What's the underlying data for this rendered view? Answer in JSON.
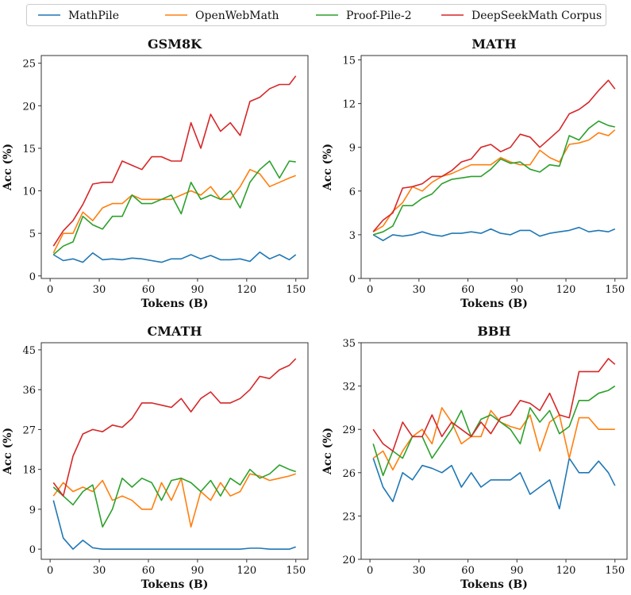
{
  "legend": {
    "placement": "top-center",
    "entries": [
      {
        "name": "MathPile",
        "color": "#1f77b4"
      },
      {
        "name": "OpenWebMath",
        "color": "#ff7f0e"
      },
      {
        "name": "Proof-Pile-2",
        "color": "#2ca02c"
      },
      {
        "name": "DeepSeekMath Corpus",
        "color": "#d62728"
      }
    ]
  },
  "chart_data": [
    {
      "type": "line",
      "title": "GSM8K",
      "xlabel": "Tokens (B)",
      "ylabel": "Acc (%)",
      "xlim": [
        -5.4,
        157.4
      ],
      "ylim": [
        -0.3,
        25.9
      ],
      "xticks": [
        0,
        30,
        60,
        90,
        120,
        150
      ],
      "yticks": [
        0,
        5,
        10,
        15,
        20,
        25
      ],
      "grid": false,
      "x": [
        2,
        8,
        14,
        20,
        26,
        32,
        38,
        44,
        50,
        56,
        62,
        68,
        74,
        80,
        86,
        92,
        98,
        104,
        110,
        116,
        122,
        128,
        134,
        140,
        146,
        150
      ],
      "series": [
        {
          "name": "MathPile",
          "values": [
            2.5,
            1.8,
            2.0,
            1.6,
            2.7,
            1.9,
            2.0,
            1.9,
            2.1,
            2.0,
            1.8,
            1.6,
            2.0,
            2.0,
            2.5,
            2.0,
            2.4,
            1.9,
            1.9,
            2.0,
            1.7,
            2.8,
            2.0,
            2.5,
            1.9,
            2.5
          ]
        },
        {
          "name": "OpenWebMath",
          "values": [
            2.7,
            5.0,
            5.0,
            7.5,
            6.5,
            8.0,
            8.5,
            8.5,
            9.5,
            9.0,
            9.0,
            9.0,
            9.0,
            9.5,
            10.0,
            9.5,
            10.5,
            9.0,
            9.0,
            10.5,
            12.5,
            12.0,
            10.5,
            11.0,
            11.5,
            11.8
          ]
        },
        {
          "name": "Proof-Pile-2",
          "values": [
            2.5,
            3.5,
            4.0,
            7.0,
            6.0,
            5.5,
            7.0,
            7.0,
            9.5,
            8.5,
            8.5,
            9.0,
            9.5,
            7.3,
            11.0,
            9.0,
            9.5,
            9.0,
            10.0,
            8.0,
            11.0,
            12.5,
            13.5,
            11.5,
            13.5,
            13.4
          ]
        },
        {
          "name": "DeepSeekMath Corpus",
          "values": [
            3.5,
            5.3,
            6.5,
            8.4,
            10.8,
            11.0,
            11.0,
            13.5,
            13.0,
            12.5,
            14.0,
            14.0,
            13.5,
            13.5,
            18.0,
            15.0,
            19.0,
            17.0,
            18.0,
            16.5,
            20.5,
            21.0,
            22.0,
            22.5,
            22.5,
            23.5
          ]
        }
      ]
    },
    {
      "type": "line",
      "title": "MATH",
      "xlabel": "Tokens (B)",
      "ylabel": "Acc (%)",
      "xlim": [
        -5.4,
        157.4
      ],
      "ylim": [
        0,
        15.3
      ],
      "xticks": [
        0,
        30,
        60,
        90,
        120,
        150
      ],
      "yticks": [
        0,
        3,
        6,
        9,
        12,
        15
      ],
      "grid": false,
      "x": [
        2,
        8,
        14,
        20,
        26,
        32,
        38,
        44,
        50,
        56,
        62,
        68,
        74,
        80,
        86,
        92,
        98,
        104,
        110,
        116,
        122,
        128,
        134,
        140,
        146,
        150
      ],
      "series": [
        {
          "name": "MathPile",
          "values": [
            3.0,
            2.6,
            3.0,
            2.9,
            3.0,
            3.2,
            3.0,
            2.9,
            3.1,
            3.1,
            3.2,
            3.1,
            3.4,
            3.1,
            3.0,
            3.3,
            3.3,
            2.9,
            3.1,
            3.2,
            3.3,
            3.5,
            3.2,
            3.3,
            3.2,
            3.4
          ]
        },
        {
          "name": "OpenWebMath",
          "values": [
            3.2,
            3.6,
            4.6,
            5.2,
            6.3,
            6.0,
            6.6,
            7.0,
            7.2,
            7.5,
            7.8,
            7.8,
            7.8,
            8.3,
            8.0,
            7.8,
            7.8,
            8.8,
            8.3,
            8.0,
            9.2,
            9.3,
            9.5,
            10.0,
            9.8,
            10.2
          ]
        },
        {
          "name": "Proof-Pile-2",
          "values": [
            3.0,
            3.2,
            3.6,
            5.0,
            5.0,
            5.5,
            5.8,
            6.5,
            6.8,
            6.9,
            7.0,
            7.0,
            7.5,
            8.2,
            7.9,
            8.0,
            7.5,
            7.3,
            7.8,
            7.7,
            9.8,
            9.5,
            10.3,
            10.8,
            10.5,
            10.4
          ]
        },
        {
          "name": "DeepSeekMath Corpus",
          "values": [
            3.2,
            4.0,
            4.5,
            6.2,
            6.3,
            6.5,
            7.0,
            7.0,
            7.4,
            8.0,
            8.2,
            9.0,
            9.2,
            8.7,
            9.0,
            9.9,
            9.7,
            9.0,
            9.6,
            10.2,
            11.3,
            11.6,
            12.1,
            12.9,
            13.6,
            13.0
          ]
        }
      ]
    },
    {
      "type": "line",
      "title": "CMATH",
      "xlabel": "Tokens (B)",
      "ylabel": "Acc (%)",
      "xlim": [
        -5.4,
        157.4
      ],
      "ylim": [
        -2.3,
        46.6
      ],
      "xticks": [
        0,
        30,
        60,
        90,
        120,
        150
      ],
      "yticks": [
        0,
        9,
        18,
        27,
        36,
        45
      ],
      "grid": false,
      "x": [
        2,
        8,
        14,
        20,
        26,
        32,
        38,
        44,
        50,
        56,
        62,
        68,
        74,
        80,
        86,
        92,
        98,
        104,
        110,
        116,
        122,
        128,
        134,
        140,
        146,
        150
      ],
      "series": [
        {
          "name": "MathPile",
          "values": [
            11.0,
            2.5,
            0.0,
            2.0,
            0.3,
            0.0,
            0.0,
            0.0,
            0.0,
            0.0,
            0.0,
            0.0,
            0.0,
            0.0,
            0.0,
            0.0,
            0.0,
            0.0,
            0.0,
            0.0,
            0.2,
            0.2,
            0.0,
            0.0,
            0.0,
            0.5
          ]
        },
        {
          "name": "OpenWebMath",
          "values": [
            12.0,
            15.0,
            13.0,
            14.0,
            13.0,
            15.5,
            11.0,
            12.0,
            11.0,
            9.0,
            9.0,
            15.0,
            11.0,
            16.0,
            5.0,
            13.0,
            11.0,
            15.0,
            12.0,
            13.0,
            17.0,
            16.5,
            15.5,
            16.0,
            16.5,
            17.0
          ]
        },
        {
          "name": "Proof-Pile-2",
          "values": [
            14.0,
            12.0,
            10.0,
            13.0,
            14.5,
            5.0,
            9.0,
            16.0,
            14.0,
            16.0,
            15.0,
            11.0,
            15.5,
            16.0,
            15.0,
            13.0,
            15.5,
            12.0,
            16.0,
            14.5,
            18.0,
            16.0,
            17.0,
            19.0,
            18.0,
            17.5
          ]
        },
        {
          "name": "DeepSeekMath Corpus",
          "values": [
            15.0,
            12.0,
            21.0,
            26.0,
            27.0,
            26.5,
            28.0,
            27.5,
            29.5,
            33.0,
            33.0,
            32.5,
            32.0,
            34.0,
            31.0,
            34.0,
            35.5,
            33.0,
            33.0,
            34.0,
            36.0,
            39.0,
            38.5,
            40.5,
            41.5,
            43.0
          ]
        }
      ]
    },
    {
      "type": "line",
      "title": "BBH",
      "xlabel": "Tokens (B)",
      "ylabel": "Acc (%)",
      "xlim": [
        -5.4,
        157.4
      ],
      "ylim": [
        20,
        35
      ],
      "xticks": [
        0,
        30,
        60,
        90,
        120,
        150
      ],
      "yticks": [
        20,
        23,
        26,
        29,
        32,
        35
      ],
      "grid": false,
      "x": [
        2,
        8,
        14,
        20,
        26,
        32,
        38,
        44,
        50,
        56,
        62,
        68,
        74,
        80,
        86,
        92,
        98,
        104,
        110,
        116,
        122,
        128,
        134,
        140,
        146,
        150
      ],
      "series": [
        {
          "name": "MathPile",
          "values": [
            27.0,
            25.0,
            24.0,
            26.0,
            25.5,
            26.5,
            26.3,
            26.0,
            26.5,
            25.0,
            26.0,
            25.0,
            25.5,
            25.5,
            25.5,
            26.0,
            24.5,
            25.0,
            25.5,
            23.5,
            27.0,
            26.0,
            26.0,
            26.8,
            26.0,
            25.1
          ]
        },
        {
          "name": "OpenWebMath",
          "values": [
            27.0,
            27.5,
            26.2,
            27.5,
            28.5,
            29.0,
            28.0,
            30.5,
            29.5,
            28.0,
            28.5,
            28.5,
            30.3,
            29.5,
            29.2,
            29.0,
            30.0,
            27.5,
            29.5,
            30.0,
            27.0,
            29.8,
            29.8,
            29.0,
            29.0,
            29.0
          ]
        },
        {
          "name": "Proof-Pile-2",
          "values": [
            28.0,
            25.8,
            27.5,
            27.0,
            28.5,
            28.5,
            27.0,
            28.0,
            29.0,
            30.3,
            28.5,
            29.7,
            30.0,
            29.5,
            29.0,
            28.0,
            30.5,
            29.5,
            30.3,
            28.7,
            29.2,
            31.0,
            31.0,
            31.5,
            31.7,
            32.0
          ]
        },
        {
          "name": "DeepSeekMath Corpus",
          "values": [
            29.0,
            28.0,
            27.5,
            29.5,
            28.5,
            28.5,
            30.0,
            28.5,
            29.5,
            29.0,
            28.5,
            29.5,
            28.7,
            29.8,
            30.0,
            31.0,
            30.8,
            30.3,
            31.5,
            30.0,
            29.8,
            33.0,
            33.0,
            33.0,
            33.9,
            33.5
          ]
        }
      ]
    }
  ]
}
